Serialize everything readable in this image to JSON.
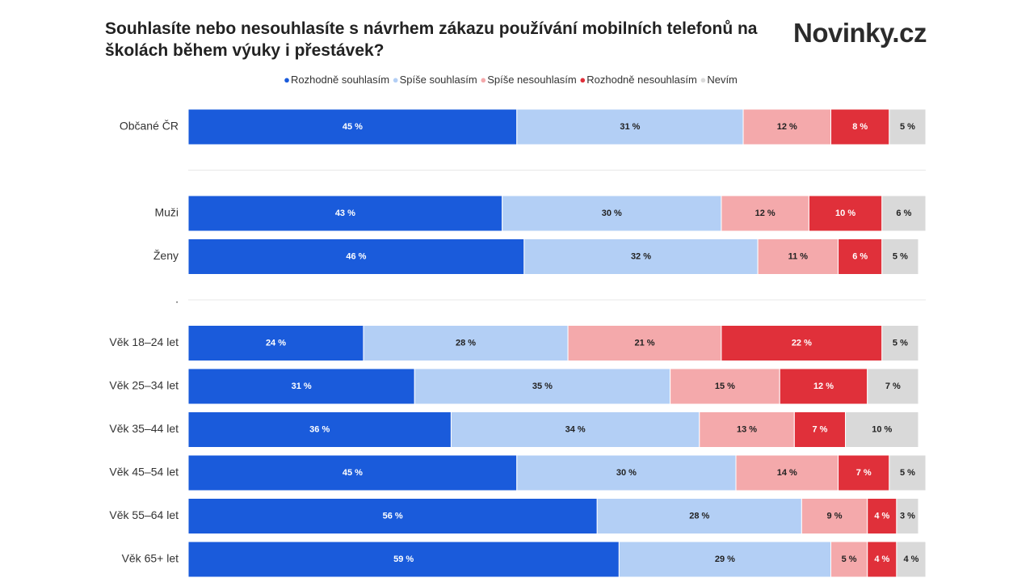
{
  "chart_data": {
    "type": "stacked_barh",
    "title": "Souhlasíte nebo nesouhlasíte s návrhem zákazu používání mobilních telefonů na školách během výuky i přestávek?",
    "logo": "Novinky.cz",
    "categories": [
      "Občané ČR",
      null,
      "Muži",
      "Ženy",
      ".",
      "Věk 18–24 let",
      "Věk 25–34 let",
      "Věk 35–44 let",
      "Věk 45–54 let",
      "Věk 55–64 let",
      "Věk 65+ let"
    ],
    "series": [
      {
        "name": "Rozhodně souhlasím",
        "color": "#1a5bdb",
        "values": [
          45,
          null,
          43,
          46,
          null,
          24,
          31,
          36,
          45,
          56,
          59
        ],
        "value_labels": [
          "45 %",
          null,
          "43 %",
          "46 %",
          null,
          "24 %",
          "31 %",
          "36 %",
          "45 %",
          "56 %",
          "59 %"
        ]
      },
      {
        "name": "Spíše souhlasím",
        "color": "#b3cff5",
        "values": [
          31,
          null,
          30,
          32,
          null,
          28,
          35,
          34,
          30,
          28,
          29
        ],
        "value_labels": [
          "31 %",
          null,
          "30 %",
          "32 %",
          null,
          "28 %",
          "35 %",
          "34 %",
          "30 %",
          "28 %",
          "29 %"
        ]
      },
      {
        "name": "Spíše nesouhlasím",
        "color": "#f4a9ab",
        "values": [
          12,
          null,
          12,
          11,
          null,
          21,
          15,
          13,
          14,
          9,
          5
        ],
        "value_labels": [
          "12 %",
          null,
          "12 %",
          "11 %",
          null,
          "21 %",
          "15 %",
          "13 %",
          "14 %",
          "9 %",
          "5 %"
        ]
      },
      {
        "name": "Rozhodně nesouhlasím",
        "color": "#e0303a",
        "values": [
          8,
          null,
          10,
          6,
          null,
          22,
          12,
          7,
          7,
          4,
          4
        ],
        "value_labels": [
          "8 %",
          null,
          "10 %",
          "6 %",
          null,
          "22 %",
          "12 %",
          "7 %",
          "7 %",
          "4 %",
          "4 %"
        ]
      },
      {
        "name": "Nevím",
        "color": "#d9d9d9",
        "values": [
          5,
          null,
          6,
          5,
          null,
          5,
          7,
          10,
          5,
          3,
          4
        ],
        "value_labels": [
          "5 %",
          null,
          "6 %",
          "5 %",
          null,
          "5 %",
          "7 %",
          "10 %",
          "5 %",
          "3 %",
          "4 %"
        ]
      }
    ]
  }
}
